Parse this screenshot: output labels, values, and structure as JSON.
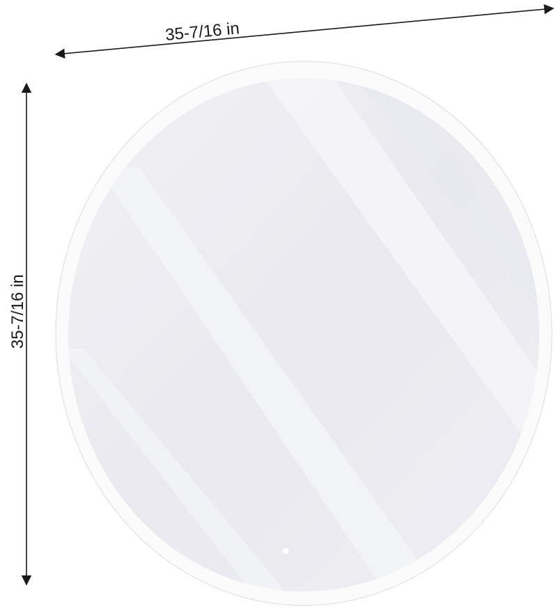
{
  "dimensions": {
    "width_label": "35-7/16 in",
    "height_label": "35-7/16 in"
  },
  "mirror": {
    "shape": "round",
    "touch_button_icon": "touch-sensor-icon"
  },
  "colors": {
    "frame": "#ececf1",
    "glass": "#ededf2",
    "arrow": "#1a1a1a"
  }
}
